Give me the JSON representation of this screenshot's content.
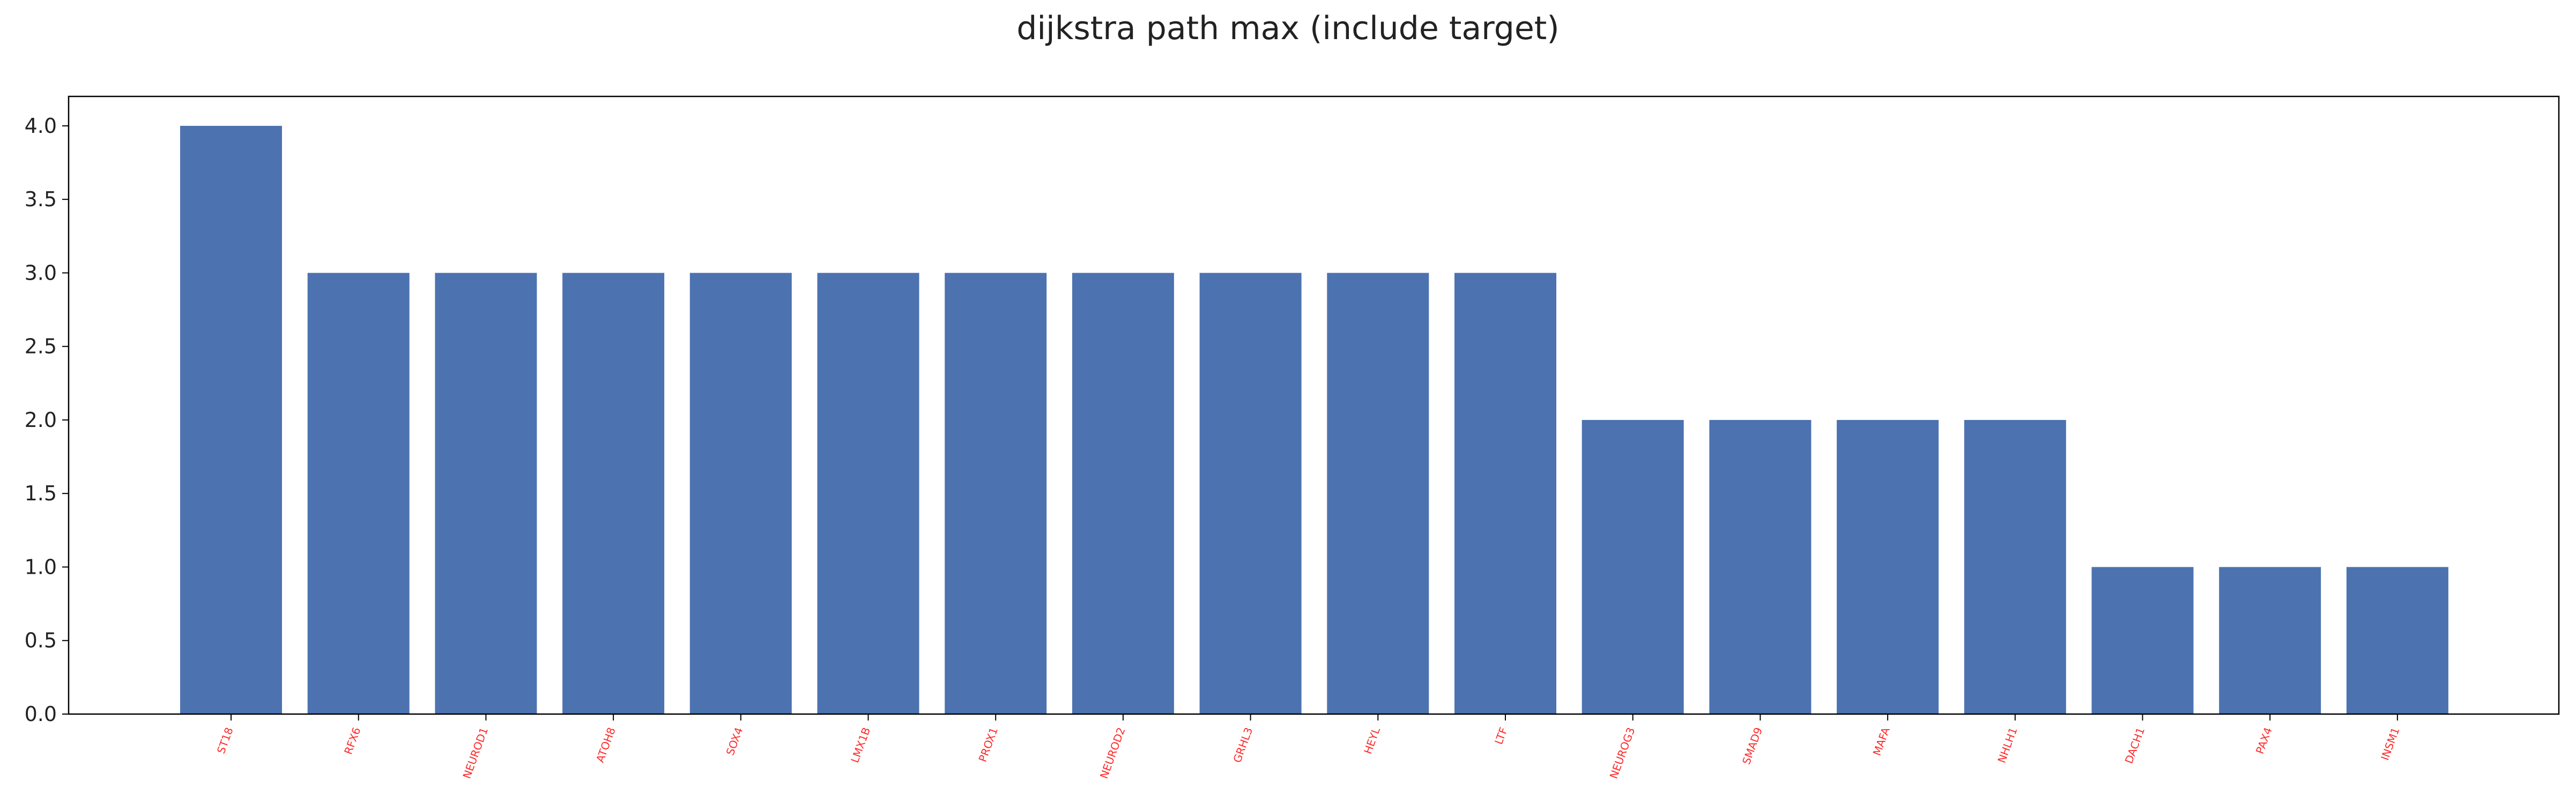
{
  "chart_data": {
    "type": "bar",
    "title": "dijkstra path max (include target)",
    "xlabel": "",
    "ylabel": "",
    "categories": [
      "ST18",
      "RFX6",
      "NEUROD1",
      "ATOH8",
      "SOX4",
      "LMX1B",
      "PROX1",
      "NEUROD2",
      "GRHL3",
      "HEYL",
      "LTF",
      "NEUROG3",
      "SMAD9",
      "MAFA",
      "NHLH1",
      "DACH1",
      "PAX4",
      "INSM1"
    ],
    "values": [
      4,
      3,
      3,
      3,
      3,
      3,
      3,
      3,
      3,
      3,
      3,
      2,
      2,
      2,
      2,
      1,
      1,
      1
    ],
    "ylim": [
      0,
      4.2
    ],
    "yticks": [
      "0.0",
      "0.5",
      "1.0",
      "1.5",
      "2.0",
      "2.5",
      "3.0",
      "3.5",
      "4.0"
    ],
    "grid": false,
    "bar_color": "#4c72b0",
    "tick_label_color": "#ff2a2a"
  }
}
